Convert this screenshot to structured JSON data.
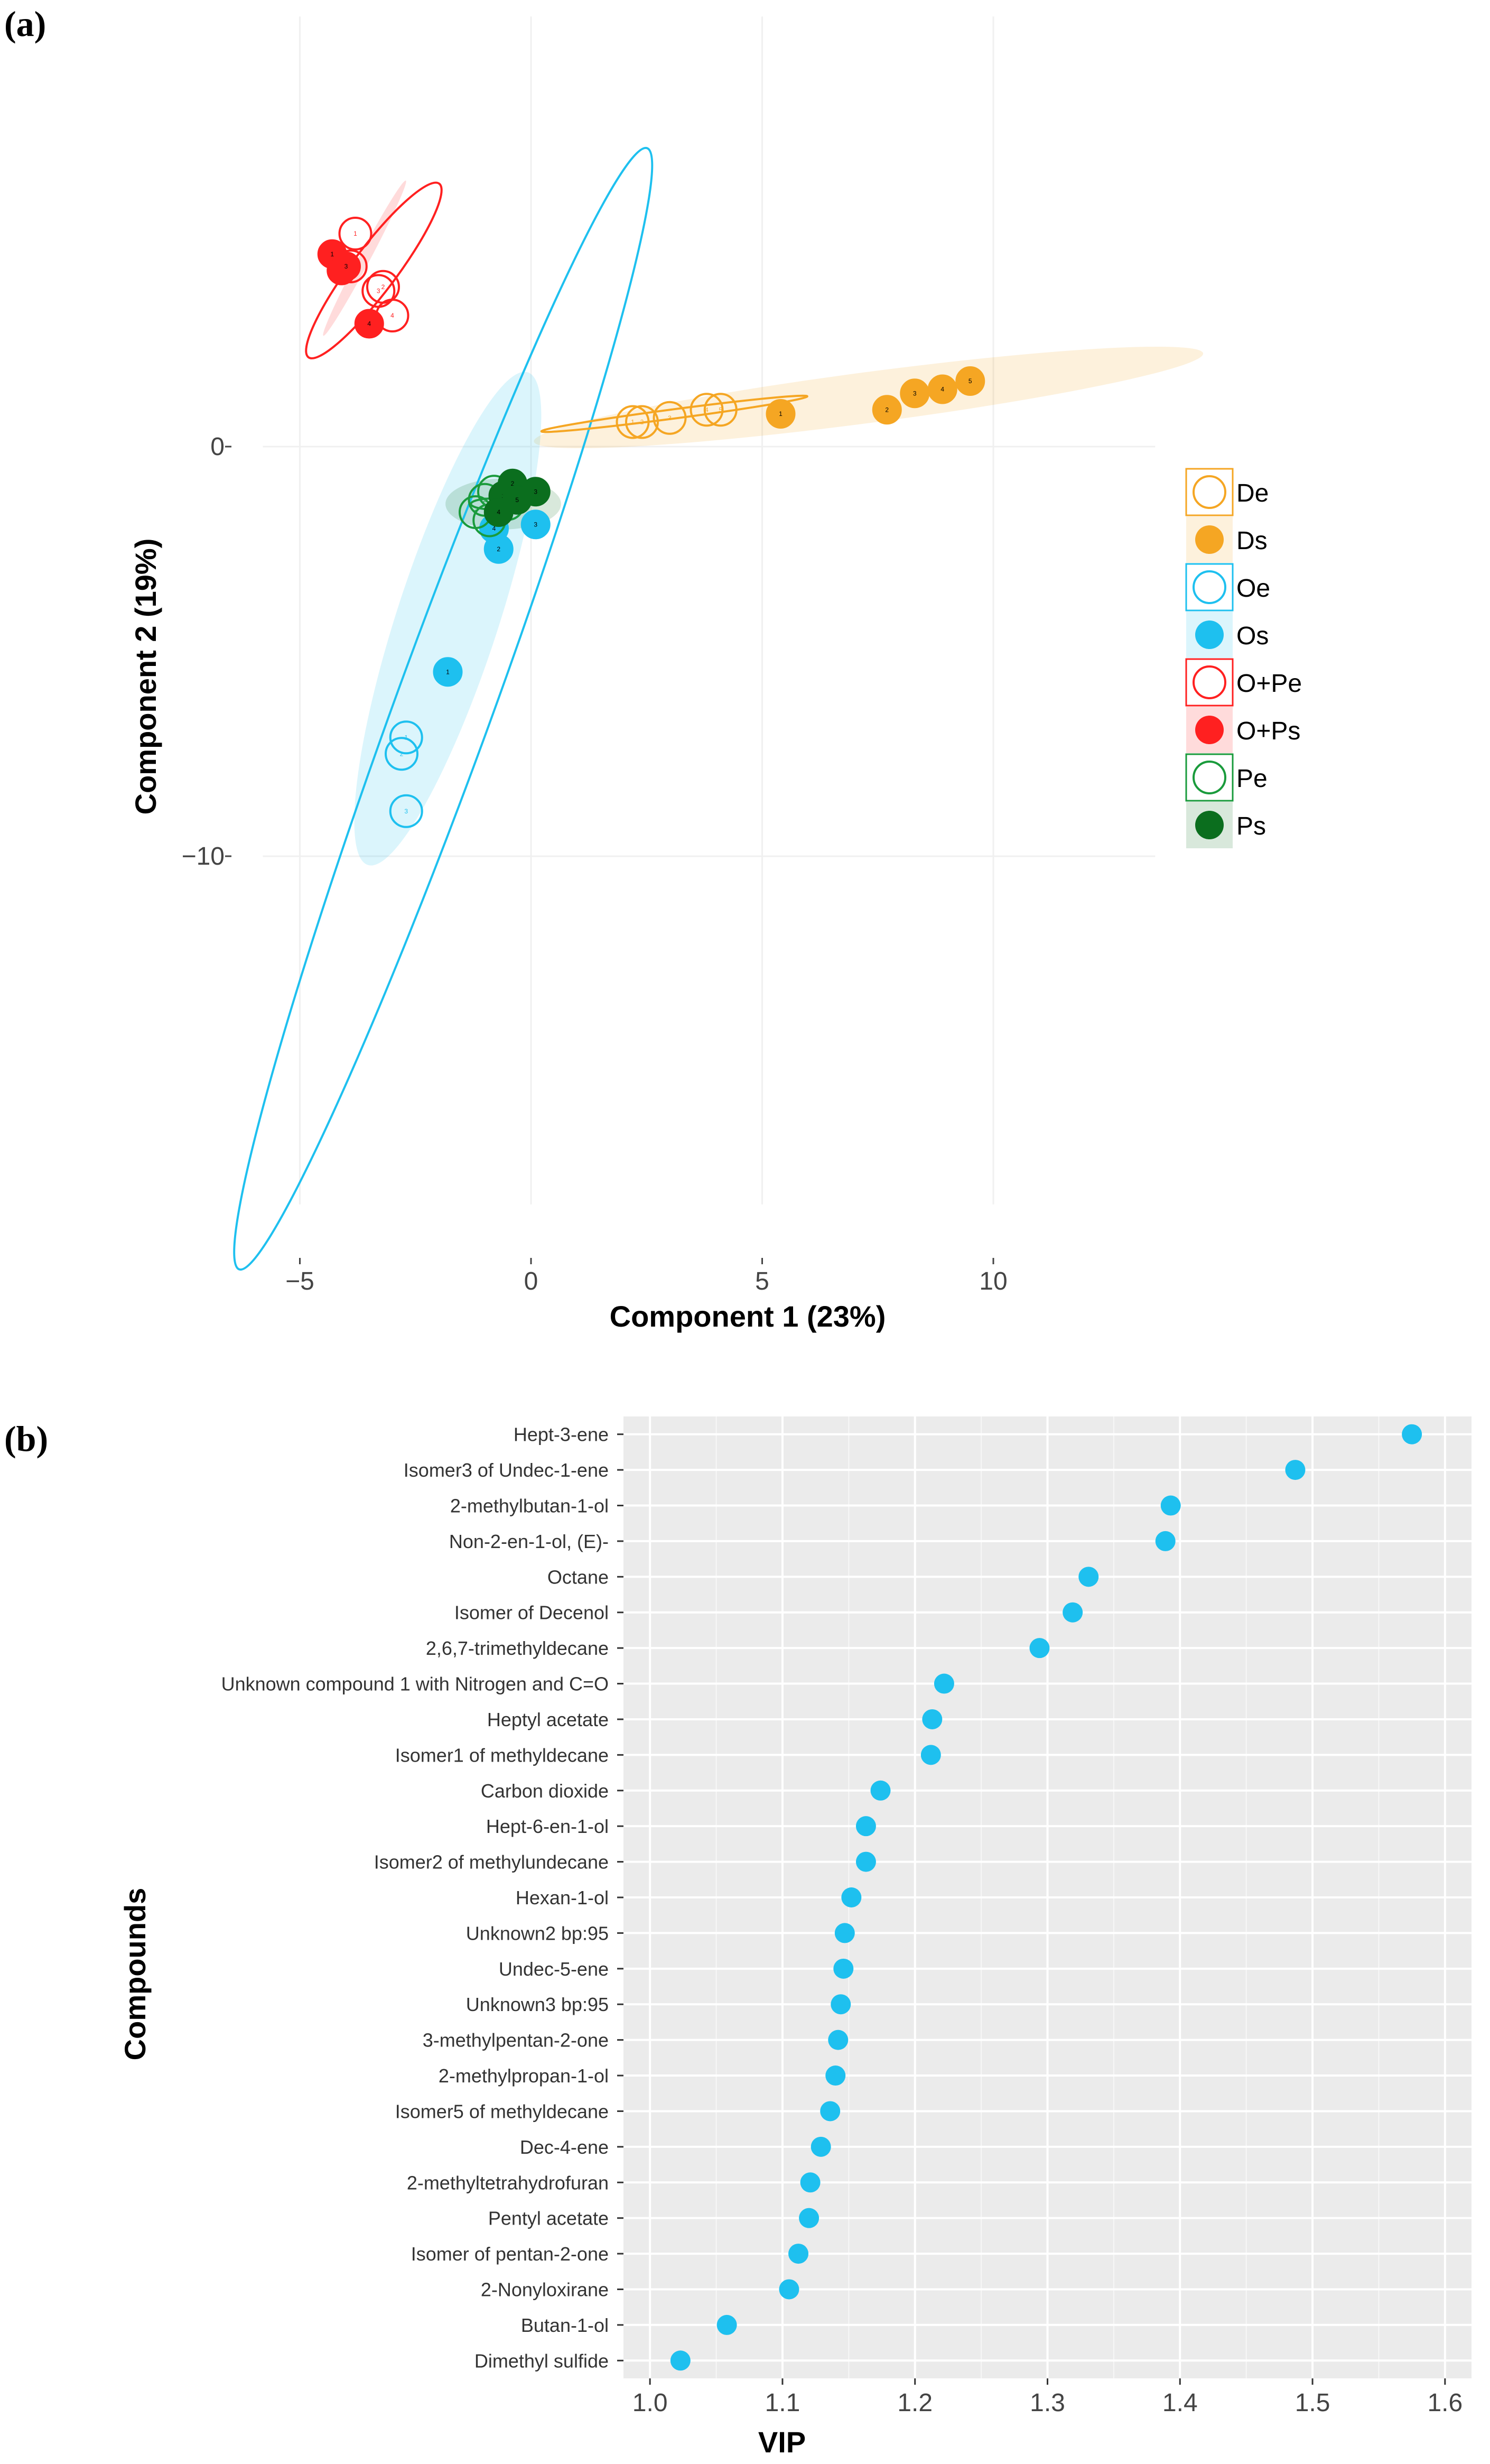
{
  "panel_a": {
    "label": "(a)",
    "chart_data": {
      "type": "scatter",
      "title": "",
      "xlabel": "Component 1 (23%)",
      "ylabel": "Component 2 (19%)",
      "xlim": [
        -5.8,
        13.5
      ],
      "ylim": [
        -18.5,
        10.5
      ],
      "x_ticks": [
        -5,
        0,
        5,
        10
      ],
      "y_ticks": [
        0,
        -10
      ],
      "tick_text": {
        "x": [
          "−5",
          "0",
          "5",
          "10"
        ],
        "y": [
          "0",
          "−10"
        ]
      },
      "grid": true,
      "legend_position": "right",
      "series": [
        {
          "name": "De",
          "color": "#f5a623",
          "filled": false,
          "points": [
            [
              2.2,
              0.6
            ],
            [
              2.4,
              0.6
            ],
            [
              3.0,
              0.7
            ],
            [
              3.8,
              0.9
            ],
            [
              4.1,
              0.9
            ]
          ]
        },
        {
          "name": "Ds",
          "color": "#f5a623",
          "filled": true,
          "points": [
            [
              5.4,
              0.8
            ],
            [
              7.7,
              0.9
            ],
            [
              8.3,
              1.3
            ],
            [
              8.9,
              1.4
            ],
            [
              9.5,
              1.6
            ]
          ]
        },
        {
          "name": "Oe",
          "color": "#1ec0ef",
          "filled": false,
          "points": [
            [
              -2.7,
              -7.1
            ],
            [
              -2.8,
              -7.5
            ],
            [
              -2.7,
              -8.9
            ]
          ]
        },
        {
          "name": "Os",
          "color": "#1ec0ef",
          "filled": true,
          "points": [
            [
              -1.8,
              -5.5
            ],
            [
              -0.7,
              -2.5
            ],
            [
              0.1,
              -1.9
            ],
            [
              -0.8,
              -2.0
            ]
          ]
        },
        {
          "name": "O+Pe",
          "color": "#ff2020",
          "filled": false,
          "points": [
            [
              -3.8,
              5.2
            ],
            [
              -3.2,
              3.9
            ],
            [
              -3.3,
              3.8
            ],
            [
              -3.0,
              3.2
            ],
            [
              -3.9,
              4.4
            ]
          ]
        },
        {
          "name": "O+Ps",
          "color": "#ff2020",
          "filled": true,
          "points": [
            [
              -4.3,
              4.7
            ],
            [
              -4.1,
              4.3
            ],
            [
              -4.0,
              4.4
            ],
            [
              -3.5,
              3.0
            ]
          ]
        },
        {
          "name": "Pe",
          "color": "#1a9b3c",
          "filled": false,
          "points": [
            [
              -1.2,
              -1.6
            ],
            [
              -1.0,
              -1.3
            ],
            [
              -0.8,
              -1.1
            ],
            [
              -0.5,
              -1.4
            ],
            [
              -0.9,
              -1.8
            ]
          ]
        },
        {
          "name": "Ps",
          "color": "#0b6e1e",
          "filled": true,
          "points": [
            [
              -0.6,
              -1.2
            ],
            [
              -0.4,
              -0.9
            ],
            [
              0.1,
              -1.1
            ],
            [
              -0.7,
              -1.6
            ],
            [
              -0.3,
              -1.3
            ]
          ]
        }
      ],
      "point_labels": [
        "1",
        "2",
        "3",
        "4",
        "5"
      ]
    }
  },
  "panel_b": {
    "label": "(b)",
    "chart_data": {
      "type": "scatter",
      "title": "",
      "xlabel": "VIP",
      "ylabel": "Compounds",
      "xlim": [
        0.98,
        1.62
      ],
      "x_ticks": [
        1.0,
        1.1,
        1.2,
        1.3,
        1.4,
        1.5,
        1.6
      ],
      "tick_text": [
        "1.0",
        "1.1",
        "1.2",
        "1.3",
        "1.4",
        "1.5",
        "1.6"
      ],
      "grid": true,
      "color": "#1ec0ef",
      "categories": [
        "Hept-3-ene",
        "Isomer3 of Undec-1-ene",
        "2-methylbutan-1-ol",
        "Non-2-en-1-ol, (E)-",
        "Octane",
        "Isomer of Decenol",
        "2,6,7-trimethyldecane",
        "Unknown compound 1 with Nitrogen and C=O",
        "Heptyl acetate ",
        "Isomer1 of methyldecane ",
        "Carbon dioxide ",
        "Hept-6-en-1-ol",
        "Isomer2 of methylundecane",
        "Hexan-1-ol",
        "Unknown2 bp:95",
        "Undec-5-ene",
        "Unknown3 bp:95",
        "3-methylpentan-2-one ",
        "2-methylpropan-1-ol",
        "Isomer5 of methyldecane",
        "Dec-4-ene",
        "2-methyltetrahydrofuran",
        "Pentyl acetate",
        "Isomer of pentan-2-one",
        "2-Nonyloxirane",
        "Butan-1-ol",
        "Dimethyl sulfide"
      ],
      "values": [
        1.575,
        1.487,
        1.393,
        1.389,
        1.331,
        1.319,
        1.294,
        1.222,
        1.213,
        1.212,
        1.174,
        1.163,
        1.163,
        1.152,
        1.147,
        1.146,
        1.144,
        1.142,
        1.14,
        1.136,
        1.129,
        1.121,
        1.12,
        1.112,
        1.105,
        1.058,
        1.023
      ]
    }
  }
}
